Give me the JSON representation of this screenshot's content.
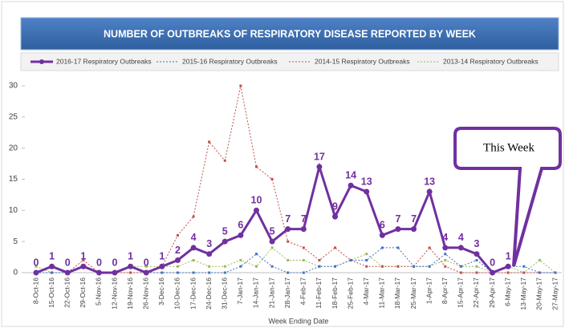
{
  "chart_data": {
    "type": "line",
    "title": "NUMBER OF OUTBREAKS OF RESPIRATORY DISEASE REPORTED BY WEEK",
    "x_label": "Week Ending Date",
    "annotation": "This Week",
    "categories": [
      "8-Oct-16",
      "15-Oct-16",
      "22-Oct-16",
      "29-Oct-16",
      "5-Nov-16",
      "12-Nov-16",
      "19-Nov-16",
      "26-Nov-16",
      "3-Dec-16",
      "10-Dec-16",
      "17-Dec-16",
      "24-Dec-16",
      "31-Dec-16",
      "7-Jan-17",
      "14-Jan-17",
      "21-Jan-17",
      "28-Jan-17",
      "4-Feb-17",
      "11-Feb-17",
      "18-Feb-17",
      "25-Feb-17",
      "4-Mar-17",
      "11-Mar-17",
      "18-Mar-17",
      "25-Mar-17",
      "1-Apr-17",
      "8-Apr-17",
      "15-Apr-17",
      "22-Apr-17",
      "29-Apr-17",
      "6-May-17",
      "13-May-17",
      "20-May-17",
      "27-May-17"
    ],
    "series": [
      {
        "name": "2016-17 Respiratory Outbreaks",
        "color": "#7030a0",
        "values": [
          0,
          1,
          0,
          1,
          0,
          0,
          1,
          0,
          1,
          2,
          4,
          3,
          5,
          6,
          10,
          5,
          7,
          7,
          17,
          9,
          14,
          13,
          6,
          7,
          7,
          13,
          4,
          4,
          3,
          0,
          1,
          null,
          null,
          null
        ]
      },
      {
        "name": "2015-16 Respiratory Outbreaks",
        "color": "#4472c4",
        "values": [
          0,
          0,
          0,
          1,
          0,
          0,
          1,
          0,
          0,
          0,
          0,
          0,
          0,
          1,
          3,
          1,
          0,
          0,
          1,
          1,
          2,
          2,
          4,
          4,
          1,
          1,
          3,
          1,
          2,
          0,
          1,
          1,
          0,
          0
        ]
      },
      {
        "name": "2014-15 Respiratory Outbreaks",
        "color": "#c0504d",
        "values": [
          0,
          0,
          0,
          2,
          0,
          0,
          0,
          0,
          1,
          6,
          9,
          21,
          18,
          30,
          17,
          15,
          5,
          4,
          2,
          4,
          2,
          1,
          1,
          1,
          1,
          4,
          1,
          0,
          0,
          0,
          0,
          0,
          0,
          0
        ]
      },
      {
        "name": "2013-14 Respiratory Outbreaks",
        "color": "#9bbb59",
        "values": [
          1,
          0,
          0,
          1,
          0,
          0,
          1,
          1,
          1,
          1,
          2,
          1,
          1,
          2,
          1,
          4,
          2,
          2,
          1,
          1,
          2,
          3,
          1,
          1,
          1,
          1,
          2,
          1,
          1,
          0,
          1,
          0,
          2,
          0
        ]
      }
    ],
    "ylim": [
      0,
      30
    ],
    "yticks": [
      0,
      5,
      10,
      15,
      20,
      25,
      30
    ]
  }
}
